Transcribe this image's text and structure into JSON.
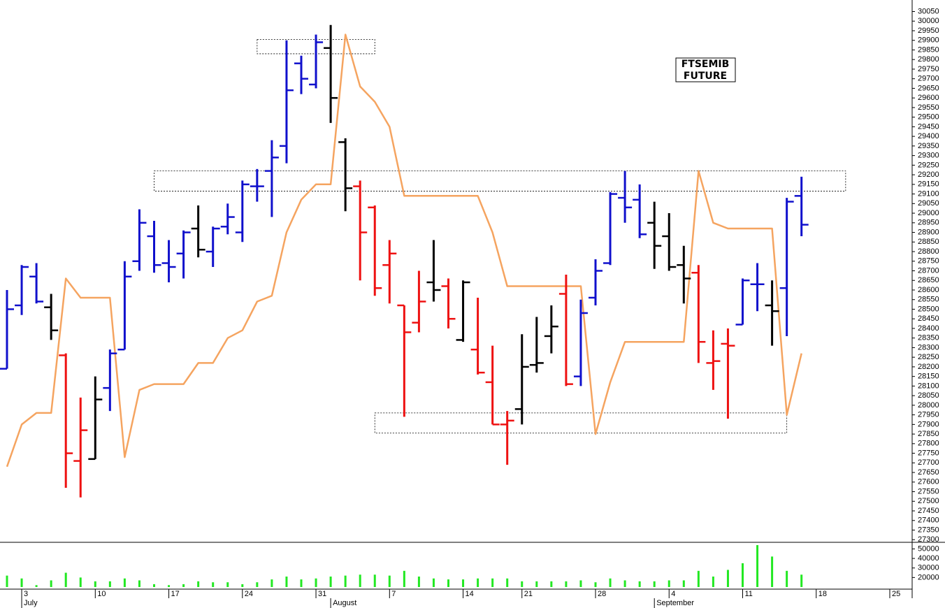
{
  "chart_data": {
    "type": "ohlc",
    "title": "FTSEMIB",
    "subtitle": "FUTURE",
    "categories": [
      null,
      "3",
      null,
      null,
      null,
      null,
      "10",
      null,
      null,
      null,
      null,
      "17",
      null,
      null,
      null,
      null,
      "24",
      null,
      null,
      null,
      null,
      "31",
      null,
      null,
      null,
      null,
      "7",
      null,
      null,
      null,
      null,
      "14",
      null,
      null,
      null,
      "21",
      null,
      null,
      null,
      null,
      "28",
      null,
      null,
      null,
      null,
      "4",
      null,
      null,
      null,
      null,
      "11",
      null,
      null,
      null,
      null,
      "18",
      null,
      null,
      null,
      null,
      "25",
      null
    ],
    "months": [
      null,
      "July",
      null,
      null,
      null,
      null,
      null,
      null,
      null,
      null,
      null,
      null,
      null,
      null,
      null,
      null,
      null,
      null,
      null,
      null,
      null,
      null,
      "August",
      null,
      null,
      null,
      null,
      null,
      null,
      null,
      null,
      null,
      null,
      null,
      null,
      null,
      null,
      null,
      null,
      null,
      null,
      null,
      null,
      null,
      "September",
      null,
      null,
      null,
      null,
      null,
      null,
      null,
      null,
      null,
      null,
      null,
      null,
      null,
      null,
      null,
      null,
      null
    ],
    "open": [
      28190,
      28520,
      28670,
      28510,
      28260,
      27710,
      27720,
      28090,
      28290,
      28750,
      28880,
      28740,
      28790,
      28920,
      28800,
      28930,
      28900,
      29140,
      29220,
      29350,
      29780,
      29670,
      29860,
      29370,
      29140,
      29030,
      28730,
      28520,
      28430,
      28640,
      28620,
      28340,
      28290,
      28120,
      27900,
      27980,
      28210,
      28360,
      28580,
      28150,
      28560,
      28740,
      29080,
      29070,
      28950,
      28880,
      28730,
      28690,
      28220,
      28320,
      28420,
      28630,
      28520,
      28610,
      29090,
      null,
      null,
      null,
      null,
      null,
      null,
      null
    ],
    "high": [
      28600,
      28730,
      28740,
      28580,
      28270,
      28040,
      28150,
      28290,
      28750,
      29020,
      28960,
      28860,
      28910,
      29040,
      28930,
      29050,
      29170,
      29230,
      29380,
      29900,
      29820,
      29930,
      29980,
      29390,
      29170,
      29040,
      28860,
      28520,
      28700,
      28860,
      28660,
      28650,
      28560,
      28310,
      27970,
      28370,
      28460,
      28520,
      28680,
      28550,
      28760,
      29110,
      29220,
      29150,
      29060,
      29000,
      28830,
      28730,
      28390,
      28400,
      28660,
      28740,
      28650,
      29080,
      29190,
      null,
      null,
      null,
      null,
      null,
      null,
      null
    ],
    "low": [
      28190,
      28470,
      28530,
      28340,
      27570,
      27520,
      27720,
      27970,
      28290,
      28700,
      28690,
      28640,
      28660,
      28770,
      28720,
      28890,
      28850,
      29060,
      28980,
      29260,
      29620,
      29650,
      29470,
      29010,
      28650,
      28570,
      28530,
      27940,
      28380,
      28540,
      28400,
      28330,
      28160,
      27900,
      27690,
      27900,
      28170,
      28270,
      28100,
      28100,
      28520,
      28730,
      28950,
      28870,
      28710,
      28700,
      28530,
      28220,
      28080,
      27930,
      28420,
      28490,
      28310,
      28360,
      28880,
      null,
      null,
      null,
      null,
      null,
      null,
      null
    ],
    "close": [
      28500,
      28720,
      28540,
      28390,
      27750,
      27870,
      28030,
      28270,
      28670,
      28950,
      28730,
      28720,
      28900,
      28810,
      28920,
      28980,
      29150,
      29140,
      29290,
      29640,
      29700,
      29890,
      29600,
      29130,
      28900,
      28610,
      28790,
      28380,
      28540,
      28600,
      28450,
      28640,
      28170,
      27900,
      27920,
      28200,
      28220,
      28410,
      28110,
      28480,
      28700,
      29100,
      29030,
      28890,
      28830,
      28720,
      28660,
      28330,
      28230,
      28310,
      28650,
      28630,
      28490,
      29060,
      28940,
      null,
      null,
      null,
      null,
      null,
      null,
      null
    ],
    "colors": [
      "#1010cc",
      "#1010cc",
      "#1010cc",
      "#000000",
      "#ee1111",
      "#ee1111",
      "#000000",
      "#1010cc",
      "#1010cc",
      "#1010cc",
      "#1010cc",
      "#1010cc",
      "#1010cc",
      "#000000",
      "#1010cc",
      "#1010cc",
      "#1010cc",
      "#1010cc",
      "#1010cc",
      "#1010cc",
      "#1010cc",
      "#1010cc",
      "#000000",
      "#000000",
      "#ee1111",
      "#ee1111",
      "#ee1111",
      "#ee1111",
      "#ee1111",
      "#000000",
      "#ee1111",
      "#000000",
      "#ee1111",
      "#ee1111",
      "#ee1111",
      "#000000",
      "#000000",
      "#000000",
      "#ee1111",
      "#1010cc",
      "#1010cc",
      "#1010cc",
      "#1010cc",
      "#1010cc",
      "#000000",
      "#000000",
      "#000000",
      "#ee1111",
      "#ee1111",
      "#ee1111",
      "#1010cc",
      "#1010cc",
      "#000000",
      "#1010cc",
      "#1010cc",
      null,
      null,
      null,
      null,
      null,
      null,
      null
    ],
    "line": {
      "color": "#f5a460",
      "values": [
        27680,
        27900,
        27960,
        27960,
        28660,
        28560,
        28560,
        28560,
        27730,
        28080,
        28110,
        28110,
        28110,
        28220,
        28220,
        28350,
        28390,
        28540,
        28570,
        28900,
        29070,
        29150,
        29150,
        29930,
        29660,
        29580,
        29450,
        29090,
        29090,
        29090,
        29090,
        29090,
        29090,
        28900,
        28620,
        28620,
        28620,
        28620,
        28620,
        28620,
        27850,
        28120,
        28330,
        28330,
        28330,
        28330,
        28330,
        29220,
        28950,
        28920,
        28920,
        28920,
        28920,
        27950,
        28270,
        null,
        null,
        null,
        null,
        null,
        null,
        null
      ]
    },
    "volume": {
      "color": "#22e822",
      "values": [
        22000,
        19000,
        12000,
        17000,
        25000,
        20000,
        16000,
        16000,
        19000,
        17000,
        13000,
        12000,
        13000,
        16000,
        15000,
        15000,
        13000,
        15000,
        18000,
        21000,
        18000,
        19000,
        21000,
        22000,
        23000,
        23000,
        22000,
        27000,
        21000,
        19000,
        18000,
        18000,
        19000,
        19000,
        19000,
        16000,
        16000,
        16000,
        16000,
        17000,
        15000,
        19000,
        17000,
        16000,
        16000,
        17000,
        17000,
        27000,
        21000,
        28000,
        35000,
        54000,
        42000,
        27000,
        23000,
        null,
        null,
        null,
        null,
        null,
        null,
        null
      ],
      "ylim": [
        10000,
        54000
      ],
      "yticks": [
        20000,
        30000,
        40000,
        50000
      ]
    },
    "boxes": [
      {
        "from": 17,
        "to": 25,
        "low": 29830,
        "high": 29905
      },
      {
        "from": 10,
        "to": 57,
        "low": 29115,
        "high": 29220
      },
      {
        "from": 25,
        "to": 53,
        "low": 27855,
        "high": 27960
      }
    ],
    "ylim": [
      27290,
      30110
    ],
    "yticks": [
      27300,
      27350,
      27400,
      27450,
      27500,
      27550,
      27600,
      27650,
      27700,
      27750,
      27800,
      27850,
      27900,
      27950,
      28000,
      28050,
      28100,
      28150,
      28200,
      28250,
      28300,
      28350,
      28400,
      28450,
      28500,
      28550,
      28600,
      28650,
      28700,
      28750,
      28800,
      28850,
      28900,
      28950,
      29000,
      29050,
      29100,
      29150,
      29200,
      29250,
      29300,
      29350,
      29400,
      29450,
      29500,
      29550,
      29600,
      29650,
      29700,
      29750,
      29800,
      29850,
      29900,
      29950,
      30000,
      30050
    ]
  }
}
